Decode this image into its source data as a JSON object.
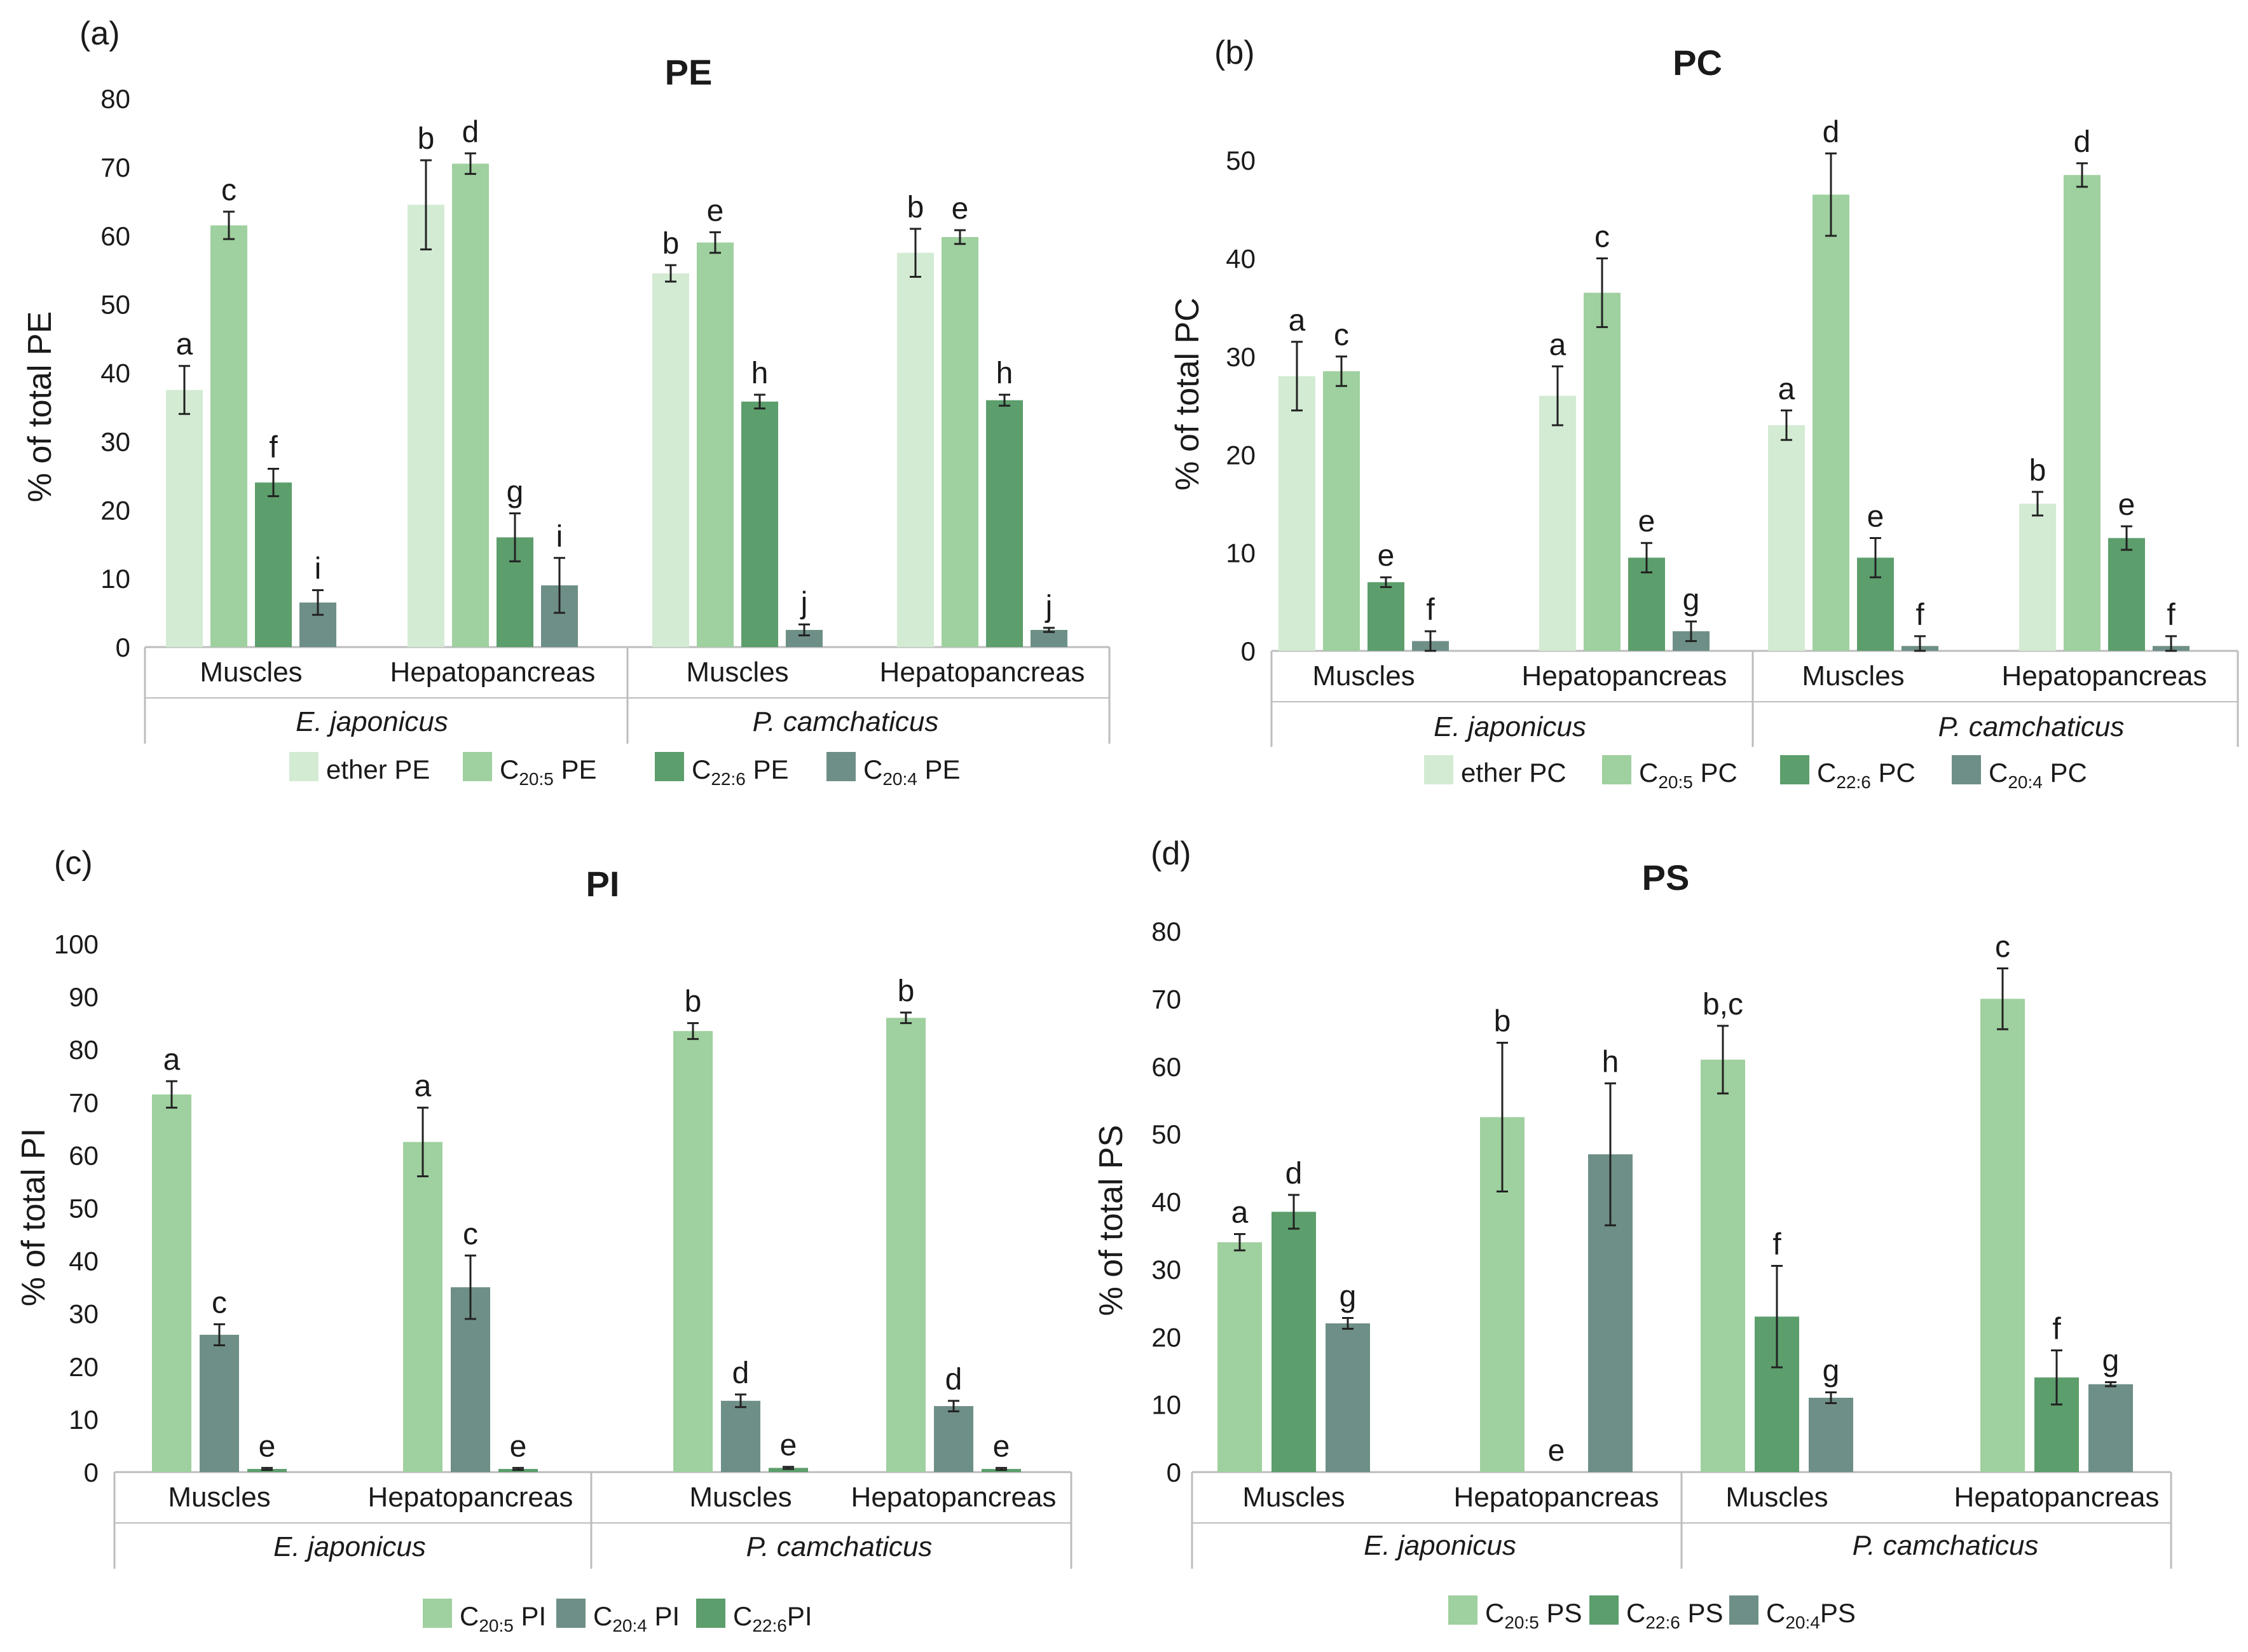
{
  "chart_data": [
    {
      "type": "bar",
      "panel": "(a)",
      "title": "PE",
      "ylabel": "% of total PE",
      "ylim": [
        0,
        80
      ],
      "ytick_step": 10,
      "categories": [
        "Muscles",
        "Hepatopancreas",
        "Muscles",
        "Hepatopancreas"
      ],
      "groups": [
        "E. japonicus",
        "P. camchaticus"
      ],
      "series": [
        {
          "key": "ether",
          "legend_pre": "ether PE",
          "legend_sub": "",
          "legend_post": "",
          "color": "#d3ebd3",
          "values": [
            37.5,
            64.5,
            54.5,
            57.5
          ],
          "errors": [
            3.5,
            6.5,
            1.2,
            3.5
          ],
          "letters": [
            "a",
            "b",
            "b",
            "b"
          ]
        },
        {
          "key": "c205",
          "legend_pre": "C",
          "legend_sub": "20:5",
          "legend_post": " PE",
          "color": "#9fd09f",
          "values": [
            61.5,
            70.5,
            59.0,
            59.8
          ],
          "errors": [
            2.0,
            1.5,
            1.5,
            1.0
          ],
          "letters": [
            "c",
            "d",
            "e",
            "e"
          ]
        },
        {
          "key": "c226",
          "legend_pre": "C",
          "legend_sub": "22:6",
          "legend_post": " PE",
          "color": "#5c9e6c",
          "values": [
            24.0,
            16.0,
            35.8,
            36.0
          ],
          "errors": [
            2.0,
            3.5,
            1.0,
            0.8
          ],
          "letters": [
            "f",
            "g",
            "h",
            "h"
          ]
        },
        {
          "key": "c204",
          "legend_pre": "C",
          "legend_sub": "20:4",
          "legend_post": " PE",
          "color": "#6e8f87",
          "values": [
            6.5,
            9.0,
            2.5,
            2.5
          ],
          "errors": [
            1.8,
            4.0,
            0.8,
            0.3
          ],
          "letters": [
            "i",
            "i",
            "j",
            "j"
          ]
        }
      ]
    },
    {
      "type": "bar",
      "panel": "(b)",
      "title": "PC",
      "ylabel": "% of total PC",
      "ylim": [
        0,
        55
      ],
      "ytick_step": 10,
      "categories": [
        "Muscles",
        "Hepatopancreas",
        "Muscles",
        "Hepatopancreas"
      ],
      "groups": [
        "E. japonicus",
        "P. camchaticus"
      ],
      "series": [
        {
          "key": "ether",
          "legend_pre": "ether PC",
          "legend_sub": "",
          "legend_post": "",
          "color": "#d3ebd3",
          "values": [
            28.0,
            26.0,
            23.0,
            15.0
          ],
          "errors": [
            3.5,
            3.0,
            1.5,
            1.2
          ],
          "letters": [
            "a",
            "a",
            "a",
            "b"
          ]
        },
        {
          "key": "c205",
          "legend_pre": "C",
          "legend_sub": "20:5",
          "legend_post": " PC",
          "color": "#9fd09f",
          "values": [
            28.5,
            36.5,
            46.5,
            48.5
          ],
          "errors": [
            1.5,
            3.5,
            4.2,
            1.2
          ],
          "letters": [
            "c",
            "c",
            "d",
            "d"
          ]
        },
        {
          "key": "c226",
          "legend_pre": "C",
          "legend_sub": "22:6",
          "legend_post": " PC",
          "color": "#5c9e6c",
          "values": [
            7.0,
            9.5,
            9.5,
            11.5
          ],
          "errors": [
            0.5,
            1.5,
            2.0,
            1.2
          ],
          "letters": [
            "e",
            "e",
            "e",
            "e"
          ]
        },
        {
          "key": "c204",
          "legend_pre": "C",
          "legend_sub": "20:4",
          "legend_post": " PC",
          "color": "#6e8f87",
          "values": [
            1.0,
            2.0,
            0.5,
            0.5
          ],
          "errors": [
            1.0,
            1.0,
            1.0,
            1.0
          ],
          "letters": [
            "f",
            "g",
            "f",
            "f"
          ]
        }
      ]
    },
    {
      "type": "bar",
      "panel": "(c)",
      "title": "PI",
      "ylabel": "% of total PI",
      "ylim": [
        0,
        100
      ],
      "ytick_step": 10,
      "categories": [
        "Muscles",
        "Hepatopancreas",
        "Muscles",
        "Hepatopancreas"
      ],
      "groups": [
        "E. japonicus",
        "P. camchaticus"
      ],
      "series": [
        {
          "key": "c205",
          "legend_pre": "C",
          "legend_sub": "20:5",
          "legend_post": " PI",
          "color": "#9fd09f",
          "values": [
            71.5,
            62.5,
            83.5,
            86.0
          ],
          "errors": [
            2.5,
            6.5,
            1.5,
            1.0
          ],
          "letters": [
            "a",
            "a",
            "b",
            "b"
          ]
        },
        {
          "key": "c204",
          "legend_pre": "C",
          "legend_sub": "20:4",
          "legend_post": " PI",
          "color": "#6e8f87",
          "values": [
            26.0,
            35.0,
            13.5,
            12.5
          ],
          "errors": [
            2.0,
            6.0,
            1.2,
            1.0
          ],
          "letters": [
            "c",
            "c",
            "d",
            "d"
          ]
        },
        {
          "key": "c226",
          "legend_pre": "C",
          "legend_sub": "22:6",
          "legend_post": "PI",
          "color": "#5c9e6c",
          "values": [
            0.6,
            0.6,
            0.8,
            0.6
          ],
          "errors": [
            0.2,
            0.2,
            0.2,
            0.2
          ],
          "letters": [
            "e",
            "e",
            "e",
            "e"
          ]
        }
      ]
    },
    {
      "type": "bar",
      "panel": "(d)",
      "title": "PS",
      "ylabel": "% of total PS",
      "ylim": [
        0,
        80
      ],
      "ytick_step": 10,
      "categories": [
        "Muscles",
        "Hepatopancreas",
        "Muscles",
        "Hepatopancreas"
      ],
      "groups": [
        "E. japonicus",
        "P. camchaticus"
      ],
      "series": [
        {
          "key": "c205",
          "legend_pre": "C",
          "legend_sub": "20:5",
          "legend_post": " PS",
          "color": "#9fd09f",
          "values": [
            34.0,
            52.5,
            61.0,
            70.0
          ],
          "errors": [
            1.2,
            11.0,
            5.0,
            4.5
          ],
          "letters": [
            "a",
            "b",
            "b,c",
            "c"
          ]
        },
        {
          "key": "c226",
          "legend_pre": "C",
          "legend_sub": "22:6",
          "legend_post": " PS",
          "color": "#5c9e6c",
          "values": [
            38.5,
            0.0,
            23.0,
            14.0
          ],
          "errors": [
            2.5,
            0.0,
            7.5,
            4.0
          ],
          "letters": [
            "d",
            "e",
            "f",
            "f"
          ]
        },
        {
          "key": "c204",
          "legend_pre": "C",
          "legend_sub": "20:4",
          "legend_post": "PS",
          "color": "#6e8f87",
          "values": [
            22.0,
            47.0,
            11.0,
            13.0
          ],
          "errors": [
            0.8,
            10.5,
            0.8,
            0.3
          ],
          "letters": [
            "g",
            "h",
            "g",
            "g"
          ]
        }
      ]
    }
  ]
}
